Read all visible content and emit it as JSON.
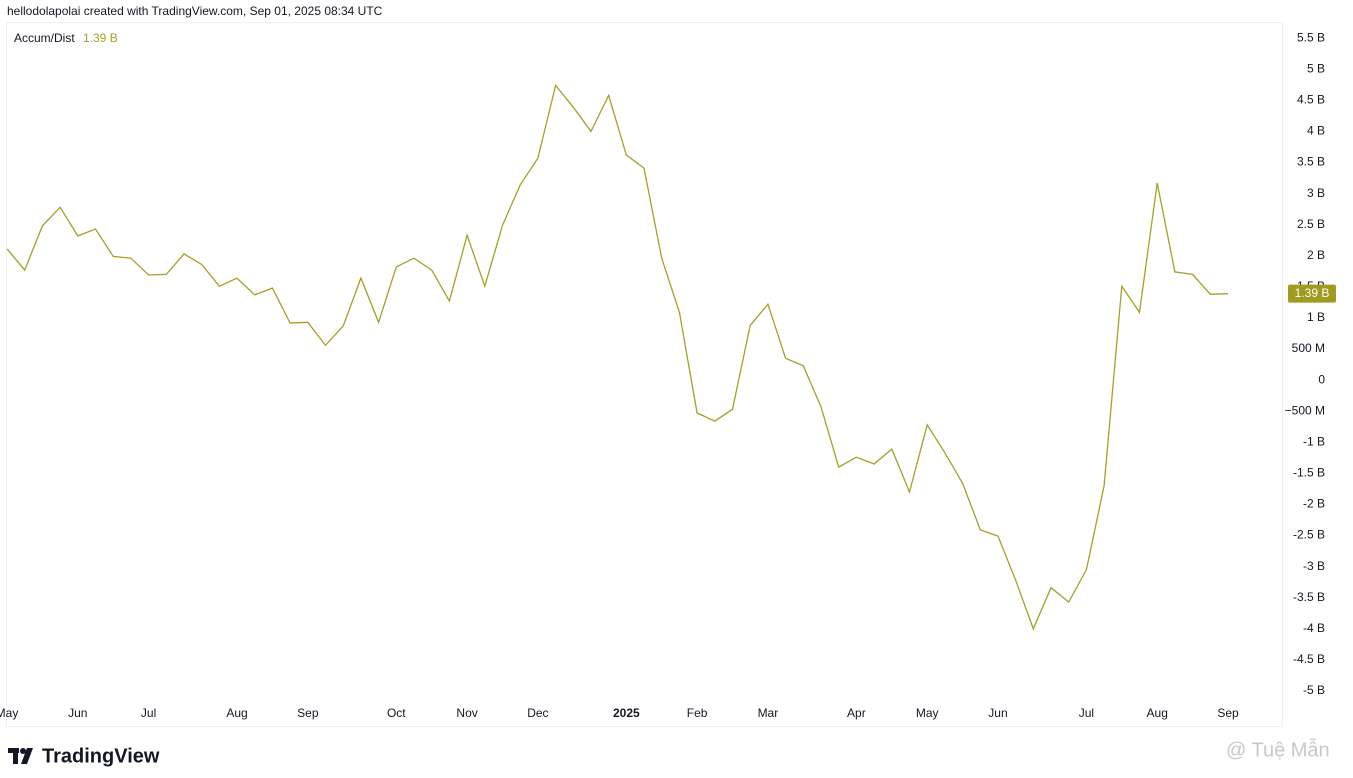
{
  "header": "hellodolapolai created with TradingView.com, Sep 01, 2025 08:34 UTC",
  "brand": "TradingView",
  "watermark": "@ Tuệ Mẫn",
  "chart_data": {
    "type": "line",
    "categories": [
      "May",
      null,
      null,
      null,
      "Jun",
      null,
      null,
      null,
      "Jul",
      null,
      null,
      null,
      null,
      "Aug",
      null,
      null,
      null,
      "Sep",
      null,
      null,
      null,
      null,
      "Oct",
      null,
      null,
      null,
      "Nov",
      null,
      null,
      null,
      "Dec",
      null,
      null,
      null,
      null,
      "2025",
      null,
      null,
      null,
      "Feb",
      null,
      null,
      null,
      "Mar",
      null,
      null,
      null,
      null,
      "Apr",
      null,
      null,
      null,
      "May",
      null,
      null,
      null,
      "Jun",
      null,
      null,
      null,
      null,
      "Jul",
      null,
      null,
      null,
      "Aug",
      null,
      null,
      null,
      "Sep"
    ],
    "series": [
      {
        "name": "Accum/Dist",
        "color": "#a5a027",
        "values": [
          2.11,
          1.77,
          2.48,
          2.78,
          2.32,
          2.43,
          1.99,
          1.96,
          1.69,
          1.7,
          2.03,
          1.86,
          1.51,
          1.64,
          1.37,
          1.48,
          0.92,
          0.93,
          0.56,
          0.87,
          1.64,
          0.93,
          1.82,
          1.96,
          1.77,
          1.27,
          2.33,
          1.51,
          2.49,
          3.14,
          3.57,
          4.74,
          4.39,
          4.0,
          4.58,
          3.62,
          3.41,
          1.96,
          1.09,
          -0.53,
          -0.66,
          -0.47,
          0.88,
          1.22,
          0.35,
          0.23,
          -0.43,
          -1.4,
          -1.24,
          -1.35,
          -1.11,
          -1.8,
          -0.72,
          -1.17,
          -1.66,
          -2.41,
          -2.51,
          -3.22,
          -4.0,
          -3.34,
          -3.57,
          -3.05,
          -1.7,
          1.51,
          1.09,
          3.17,
          1.74,
          1.7,
          1.38,
          1.39
        ]
      }
    ],
    "legend_value": {
      "value": 1.39,
      "label": "1.39 B"
    },
    "ylim": [
      -5.58,
      5.76
    ],
    "yticks": [
      {
        "value": 5.5,
        "label": "5.5 B"
      },
      {
        "value": 5,
        "label": "5 B"
      },
      {
        "value": 4.5,
        "label": "4.5 B"
      },
      {
        "value": 4,
        "label": "4 B"
      },
      {
        "value": 3.5,
        "label": "3.5 B"
      },
      {
        "value": 3,
        "label": "3 B"
      },
      {
        "value": 2.5,
        "label": "2.5 B"
      },
      {
        "value": 2,
        "label": "2 B"
      },
      {
        "value": 1.5,
        "label": "1.5 B"
      },
      {
        "value": 1,
        "label": "1 B"
      },
      {
        "value": 0.5,
        "label": "500 M"
      },
      0,
      {
        "value": -0.5,
        "label": "−500 M"
      },
      {
        "value": -1,
        "label": "-1 B"
      },
      {
        "value": -1.5,
        "label": "-1.5 B"
      },
      {
        "value": -2,
        "label": "-2 B"
      },
      {
        "value": -2.5,
        "label": "-2.5 B"
      },
      {
        "value": -3,
        "label": "-3 B"
      },
      {
        "value": -3.5,
        "label": "-3.5 B"
      },
      {
        "value": -4,
        "label": "-4 B"
      },
      {
        "value": -4.5,
        "label": "-4.5 B"
      },
      {
        "value": -5,
        "label": "-5 B"
      }
    ],
    "grid": false
  }
}
